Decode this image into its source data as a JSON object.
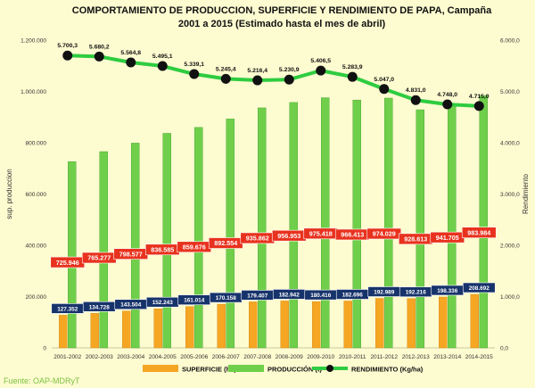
{
  "chart_data": {
    "type": "bar",
    "title_line1": "COMPORTAMIENTO DE PRODUCCION, SUPERFICIE Y RENDIMIENTO DE PAPA, Campaña",
    "title_line2": "2001 a 2015 (Estimado hasta el mes de abril)",
    "ylabel_left": "sup. produccion",
    "ylabel_right": "Rendimiento",
    "ylim_left": [
      0,
      1200000
    ],
    "ylim_right": [
      0,
      6000
    ],
    "left_ticks": [
      "0",
      "200.000",
      "400.000",
      "600.000",
      "800.000",
      "1.000.000",
      "1.200.000"
    ],
    "right_ticks": [
      "0,0",
      "1.000,0",
      "2.000,0",
      "3.000,0",
      "4.000,0",
      "5.000,0",
      "6.000,0"
    ],
    "categories": [
      "2001-2002",
      "2002-2003",
      "2003-2004",
      "2004-2005",
      "2005-2006",
      "2006-2007",
      "2007-2008",
      "2008-2009",
      "2009-2010",
      "2010-2011",
      "2011-2012",
      "2012-2013",
      "2013-2014",
      "2014-2015"
    ],
    "series": [
      {
        "name": "SUPERFICIE (ha)",
        "kind": "bar",
        "axis": "left",
        "color": "#f5a623",
        "values": [
          127352,
          134728,
          143504,
          152243,
          161014,
          170158,
          179407,
          182942,
          180416,
          182696,
          192989,
          192216,
          198336,
          208692
        ],
        "labels": [
          "127.352",
          "134.728",
          "143.504",
          "152.243",
          "161.014",
          "170.158",
          "179.407",
          "182.942",
          "180.416",
          "182.696",
          "192.989",
          "192.216",
          "198.336",
          "208.692"
        ]
      },
      {
        "name": "PRODUCCIÓN (t)",
        "kind": "bar",
        "axis": "left",
        "color": "#6fcf4a",
        "values": [
          725946,
          765277,
          798577,
          836585,
          859676,
          892554,
          935862,
          956953,
          975418,
          966413,
          974029,
          928613,
          941705,
          983984
        ],
        "labels": [
          "725.946",
          "765.277",
          "798.577",
          "836.585",
          "859.676",
          "892.554",
          "935.862",
          "956.953",
          "975.418",
          "966.413",
          "974.029",
          "928.613",
          "941.705",
          "983.984"
        ]
      },
      {
        "name": "RENDIMIENTO (Kg/ha)",
        "kind": "line",
        "axis": "right",
        "color": "#2ecc40",
        "values": [
          5700.3,
          5680.2,
          5564.8,
          5495.1,
          5339.1,
          5245.4,
          5216.4,
          5230.9,
          5406.5,
          5283.9,
          5047.0,
          4831.0,
          4748.0,
          4715.0
        ],
        "labels": [
          "5.700,3",
          "5.680,2",
          "5.564,8",
          "5.495,1",
          "5.339,1",
          "5.245,4",
          "5.216,4",
          "5.230,9",
          "5.406,5",
          "5.283,9",
          "5.047,0",
          "4.831,0",
          "4.748,0",
          "4.715,0"
        ]
      }
    ],
    "colors": {
      "prod_label_bg": "#e8321e",
      "sup_label_bg": "#17336b",
      "marker": "#111111"
    }
  },
  "source": "Fuente: OAP-MDRyT"
}
